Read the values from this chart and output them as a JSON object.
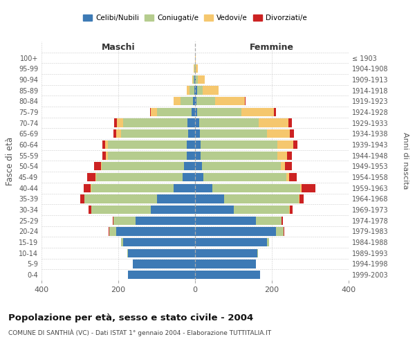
{
  "age_groups": [
    "0-4",
    "5-9",
    "10-14",
    "15-19",
    "20-24",
    "25-29",
    "30-34",
    "35-39",
    "40-44",
    "45-49",
    "50-54",
    "55-59",
    "60-64",
    "65-69",
    "70-74",
    "75-79",
    "80-84",
    "85-89",
    "90-94",
    "95-99",
    "100+"
  ],
  "birth_years": [
    "1999-2003",
    "1994-1998",
    "1989-1993",
    "1984-1988",
    "1979-1983",
    "1974-1978",
    "1969-1973",
    "1964-1968",
    "1959-1963",
    "1954-1958",
    "1949-1953",
    "1944-1948",
    "1939-1943",
    "1934-1938",
    "1929-1933",
    "1924-1928",
    "1919-1923",
    "1914-1918",
    "1909-1913",
    "1904-1908",
    "≤ 1903"
  ],
  "colors": {
    "celibi": "#3d7ab5",
    "coniugati": "#b5cc8e",
    "vedovi": "#f5c76e",
    "divorziati": "#cc2222"
  },
  "males": {
    "celibi": [
      175,
      162,
      175,
      188,
      205,
      155,
      115,
      100,
      55,
      32,
      28,
      22,
      22,
      18,
      20,
      9,
      5,
      2,
      1,
      0,
      0
    ],
    "coniugati": [
      0,
      0,
      2,
      5,
      18,
      58,
      155,
      188,
      215,
      225,
      215,
      205,
      205,
      175,
      168,
      90,
      32,
      12,
      4,
      2,
      0
    ],
    "vedovi": [
      0,
      0,
      0,
      0,
      0,
      0,
      0,
      1,
      2,
      2,
      2,
      5,
      8,
      12,
      15,
      16,
      18,
      8,
      3,
      1,
      0
    ],
    "divorziati": [
      0,
      0,
      0,
      0,
      2,
      2,
      8,
      10,
      18,
      22,
      18,
      10,
      6,
      8,
      8,
      2,
      0,
      0,
      0,
      0,
      0
    ]
  },
  "females": {
    "celibi": [
      170,
      158,
      162,
      188,
      210,
      158,
      100,
      75,
      45,
      22,
      18,
      15,
      15,
      12,
      10,
      5,
      4,
      5,
      2,
      0,
      0
    ],
    "coniugati": [
      0,
      0,
      2,
      5,
      20,
      68,
      145,
      195,
      228,
      215,
      205,
      200,
      200,
      175,
      155,
      115,
      48,
      15,
      5,
      2,
      0
    ],
    "vedovi": [
      0,
      0,
      0,
      0,
      0,
      0,
      1,
      2,
      5,
      8,
      12,
      25,
      40,
      60,
      78,
      85,
      78,
      42,
      18,
      5,
      1
    ],
    "divorziati": [
      0,
      0,
      0,
      0,
      2,
      2,
      8,
      10,
      35,
      20,
      18,
      12,
      12,
      10,
      10,
      5,
      2,
      0,
      0,
      0,
      0
    ]
  },
  "title": "Popolazione per età, sesso e stato civile - 2004",
  "subtitle": "COMUNE DI SANTHIÀ (VC) - Dati ISTAT 1° gennaio 2004 - Elaborazione TUTTITALIA.IT",
  "xlabel_left": "Maschi",
  "xlabel_right": "Femmine",
  "ylabel_left": "Fasce di età",
  "ylabel_right": "Anni di nascita",
  "xlim": 400,
  "background_color": "#ffffff",
  "grid_color": "#cccccc",
  "legend_labels": [
    "Celibi/Nubili",
    "Coniugati/e",
    "Vedovi/e",
    "Divorziati/e"
  ]
}
